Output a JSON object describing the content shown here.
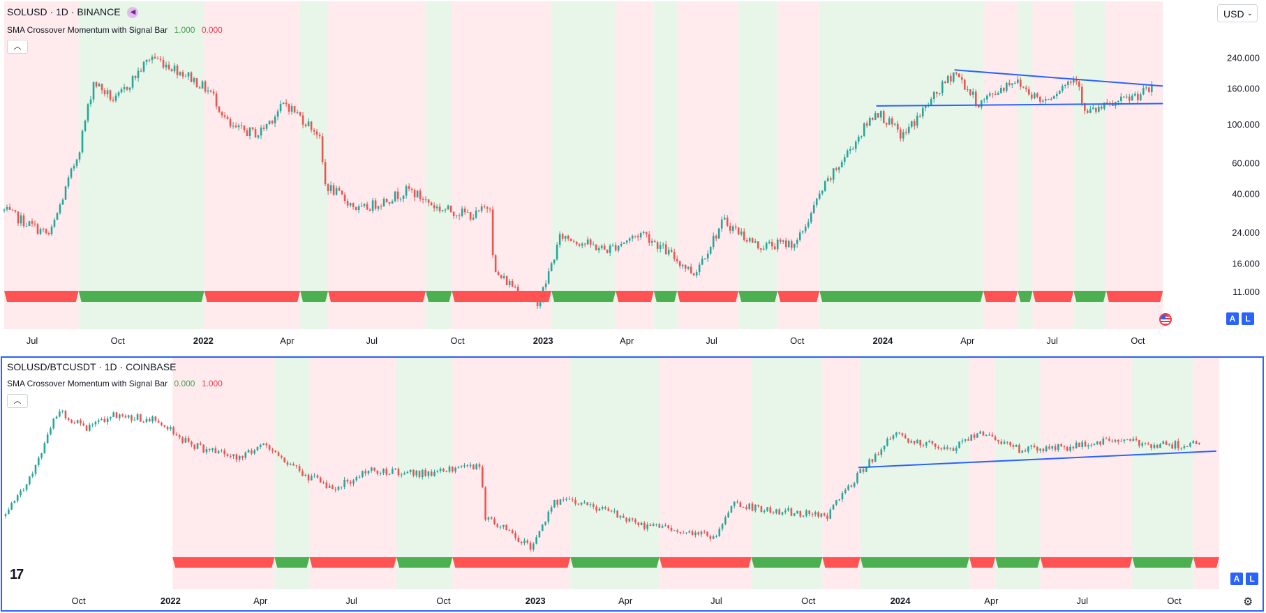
{
  "pane1": {
    "symbol": "SOLUSD · 1D · BINANCE",
    "indicator_name": "SMA Crossover Momentum with Signal Bar",
    "indicator_val1": "1.000",
    "indicator_val2": "0.000",
    "currency": "USD",
    "price_scale": [
      "240.000",
      "160.000",
      "100.000",
      "60.000",
      "40.000",
      "24.000",
      "16.000",
      "11.000"
    ],
    "time_axis": [
      "Jul",
      "Oct",
      "2022",
      "Apr",
      "Jul",
      "Oct",
      "2023",
      "Apr",
      "Jul",
      "Oct",
      "2024",
      "Apr",
      "Jul",
      "Oct"
    ],
    "axis_buttons": [
      "A",
      "L"
    ]
  },
  "pane2": {
    "symbol": "SOLUSD/BTCUSDT · 1D · COINBASE",
    "indicator_name": "SMA Crossover Momentum with Signal Bar",
    "indicator_val1": "0.000",
    "indicator_val2": "1.000",
    "time_axis": [
      "Oct",
      "2022",
      "Apr",
      "Jul",
      "Oct",
      "2023",
      "Apr",
      "Jul",
      "Oct",
      "2024",
      "Apr",
      "Jul",
      "Oct"
    ],
    "axis_buttons": [
      "A",
      "L"
    ]
  },
  "colors": {
    "up": "#26a69a",
    "down": "#ef5350",
    "bull_bg": "#e8f5e9",
    "bear_bg": "#ffebee",
    "bull_bar": "#4caf50",
    "bear_bar": "#ff5252",
    "trendline": "#2962ff",
    "accent": "#2962ff"
  },
  "chart_data": [
    {
      "type": "candlestick",
      "title": "SOLUSD · 1D · BINANCE",
      "scale": "log",
      "ylim": [
        9,
        290
      ],
      "x_range": [
        "2021-06",
        "2024-11"
      ],
      "price_path": [
        [
          "2021-06-01",
          32
        ],
        [
          "2021-07-20",
          23
        ],
        [
          "2021-08-20",
          70
        ],
        [
          "2021-09-05",
          175
        ],
        [
          "2021-09-28",
          135
        ],
        [
          "2021-11-06",
          245
        ],
        [
          "2021-12-15",
          190
        ],
        [
          "2022-01-10",
          150
        ],
        [
          "2022-01-30",
          95
        ],
        [
          "2022-03-01",
          88
        ],
        [
          "2022-03-30",
          132
        ],
        [
          "2022-05-05",
          88
        ],
        [
          "2022-05-12",
          45
        ],
        [
          "2022-06-18",
          32
        ],
        [
          "2022-08-10",
          42
        ],
        [
          "2022-09-10",
          33
        ],
        [
          "2022-10-20",
          30
        ],
        [
          "2022-11-06",
          35
        ],
        [
          "2022-11-09",
          14
        ],
        [
          "2022-12-28",
          9.6
        ],
        [
          "2023-01-20",
          23
        ],
        [
          "2023-03-10",
          19
        ],
        [
          "2023-04-18",
          24
        ],
        [
          "2023-06-12",
          14
        ],
        [
          "2023-07-14",
          28
        ],
        [
          "2023-08-20",
          20
        ],
        [
          "2023-10-01",
          21
        ],
        [
          "2023-10-28",
          42
        ],
        [
          "2023-12-25",
          120
        ],
        [
          "2024-01-22",
          85
        ],
        [
          "2024-03-18",
          200
        ],
        [
          "2024-04-13",
          130
        ],
        [
          "2024-05-20",
          180
        ],
        [
          "2024-06-20",
          135
        ],
        [
          "2024-07-28",
          190
        ],
        [
          "2024-08-05",
          115
        ],
        [
          "2024-09-06",
          130
        ],
        [
          "2024-10-18",
          160
        ]
      ],
      "trendlines": [
        {
          "from": [
            "2023-12-25",
            127
          ],
          "to": [
            "2024-10-28",
            131
          ],
          "color": "#2962ff"
        },
        {
          "from": [
            "2024-03-18",
            204
          ],
          "to": [
            "2024-10-28",
            165
          ],
          "color": "#2962ff"
        }
      ],
      "signal_bar": [
        {
          "from": "2021-06-01",
          "to": "2021-08-20",
          "state": "bear"
        },
        {
          "from": "2021-08-20",
          "to": "2022-01-02",
          "state": "bull"
        },
        {
          "from": "2022-01-02",
          "to": "2022-04-15",
          "state": "bear"
        },
        {
          "from": "2022-04-15",
          "to": "2022-05-15",
          "state": "bull"
        },
        {
          "from": "2022-05-15",
          "to": "2022-08-28",
          "state": "bear"
        },
        {
          "from": "2022-08-28",
          "to": "2022-09-25",
          "state": "bull"
        },
        {
          "from": "2022-09-25",
          "to": "2023-01-10",
          "state": "bear"
        },
        {
          "from": "2023-01-10",
          "to": "2023-03-20",
          "state": "bull"
        },
        {
          "from": "2023-03-20",
          "to": "2023-04-30",
          "state": "bear"
        },
        {
          "from": "2023-04-30",
          "to": "2023-05-25",
          "state": "bull"
        },
        {
          "from": "2023-05-25",
          "to": "2023-07-30",
          "state": "bear"
        },
        {
          "from": "2023-07-30",
          "to": "2023-09-10",
          "state": "bull"
        },
        {
          "from": "2023-09-10",
          "to": "2023-10-25",
          "state": "bear"
        },
        {
          "from": "2023-10-25",
          "to": "2024-04-18",
          "state": "bull"
        },
        {
          "from": "2024-04-18",
          "to": "2024-05-25",
          "state": "bear"
        },
        {
          "from": "2024-05-25",
          "to": "2024-06-10",
          "state": "bull"
        },
        {
          "from": "2024-06-10",
          "to": "2024-07-24",
          "state": "bear"
        },
        {
          "from": "2024-07-24",
          "to": "2024-08-28",
          "state": "bull"
        },
        {
          "from": "2024-08-28",
          "to": "2024-10-28",
          "state": "bear"
        }
      ]
    },
    {
      "type": "candlestick",
      "title": "SOLUSD/BTCUSDT · 1D · COINBASE",
      "scale": "log",
      "ylim": [
        0.0002,
        0.006
      ],
      "x_range": [
        "2021-07-20",
        "2024-11-15"
      ],
      "price_path": [
        [
          "2021-07-20",
          0.0006
        ],
        [
          "2021-08-20",
          0.0015
        ],
        [
          "2021-09-10",
          0.004
        ],
        [
          "2021-10-10",
          0.003
        ],
        [
          "2021-11-05",
          0.0038
        ],
        [
          "2021-12-20",
          0.0034
        ],
        [
          "2022-01-20",
          0.0022
        ],
        [
          "2022-03-10",
          0.0017
        ],
        [
          "2022-04-05",
          0.0022
        ],
        [
          "2022-05-12",
          0.0013
        ],
        [
          "2022-06-15",
          0.001
        ],
        [
          "2022-07-20",
          0.0014
        ],
        [
          "2022-09-10",
          0.0013
        ],
        [
          "2022-11-06",
          0.0015
        ],
        [
          "2022-11-12",
          0.0006
        ],
        [
          "2022-12-29",
          0.00034
        ],
        [
          "2023-01-20",
          0.0008
        ],
        [
          "2023-03-10",
          0.0007
        ],
        [
          "2023-04-10",
          0.00052
        ],
        [
          "2023-06-12",
          0.00045
        ],
        [
          "2023-07-01",
          0.0004
        ],
        [
          "2023-07-15",
          0.00075
        ],
        [
          "2023-09-10",
          0.00065
        ],
        [
          "2023-10-20",
          0.0006
        ],
        [
          "2023-11-20",
          0.0013
        ],
        [
          "2023-12-25",
          0.0026
        ],
        [
          "2024-02-20",
          0.002
        ],
        [
          "2024-03-20",
          0.0028
        ],
        [
          "2024-05-01",
          0.002
        ],
        [
          "2024-06-20",
          0.0021
        ],
        [
          "2024-08-01",
          0.0024
        ],
        [
          "2024-09-10",
          0.0022
        ],
        [
          "2024-10-28",
          0.0022
        ]
      ],
      "trendlines": [
        {
          "from": [
            "2023-11-20",
            0.00145
          ],
          "to": [
            "2024-11-12",
            0.00195
          ],
          "color": "#2962ff"
        }
      ],
      "signal_bar": [
        {
          "from": "2022-01-03",
          "to": "2022-04-15",
          "state": "bear"
        },
        {
          "from": "2022-04-15",
          "to": "2022-05-20",
          "state": "bull"
        },
        {
          "from": "2022-05-20",
          "to": "2022-08-15",
          "state": "bear"
        },
        {
          "from": "2022-08-15",
          "to": "2022-10-10",
          "state": "bull"
        },
        {
          "from": "2022-10-10",
          "to": "2023-02-05",
          "state": "bear"
        },
        {
          "from": "2023-02-05",
          "to": "2023-05-05",
          "state": "bull"
        },
        {
          "from": "2023-05-05",
          "to": "2023-08-05",
          "state": "bear"
        },
        {
          "from": "2023-08-05",
          "to": "2023-10-15",
          "state": "bull"
        },
        {
          "from": "2023-10-15",
          "to": "2023-11-22",
          "state": "bear"
        },
        {
          "from": "2023-11-22",
          "to": "2024-03-10",
          "state": "bull"
        },
        {
          "from": "2024-03-10",
          "to": "2024-04-05",
          "state": "bear"
        },
        {
          "from": "2024-04-05",
          "to": "2024-05-20",
          "state": "bull"
        },
        {
          "from": "2024-05-20",
          "to": "2024-08-20",
          "state": "bear"
        },
        {
          "from": "2024-08-20",
          "to": "2024-10-20",
          "state": "bull"
        },
        {
          "from": "2024-10-20",
          "to": "2024-11-15",
          "state": "bear"
        }
      ]
    }
  ]
}
